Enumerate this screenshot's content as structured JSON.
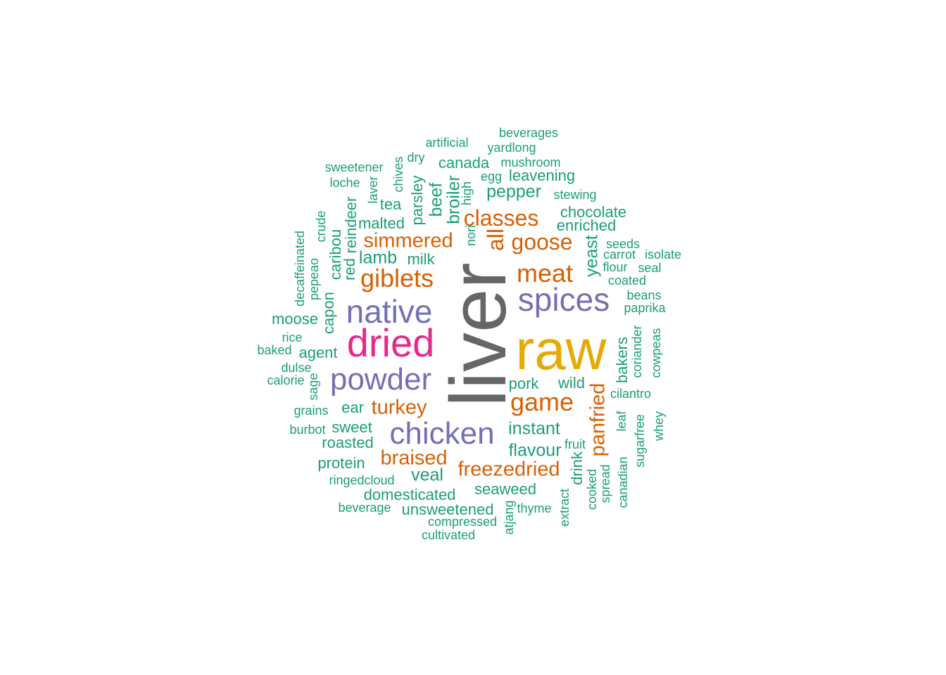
{
  "colors": {
    "gray": "#666666",
    "gold": "#E6AB02",
    "magenta": "#E7298A",
    "purple": "#7570B3",
    "orange": "#D95F02",
    "teal": "#1B9E77"
  },
  "words": [
    {
      "text": "liver",
      "color": "gray"
    },
    {
      "text": "raw",
      "color": "gold"
    },
    {
      "text": "dried",
      "color": "magenta"
    },
    {
      "text": "native",
      "color": "purple"
    },
    {
      "text": "powder",
      "color": "purple"
    },
    {
      "text": "chicken",
      "color": "purple"
    },
    {
      "text": "spices",
      "color": "purple"
    },
    {
      "text": "giblets",
      "color": "orange"
    },
    {
      "text": "meat",
      "color": "orange"
    },
    {
      "text": "game",
      "color": "orange"
    },
    {
      "text": "simmered",
      "color": "orange"
    },
    {
      "text": "goose",
      "color": "orange"
    },
    {
      "text": "classes",
      "color": "orange"
    },
    {
      "text": "all",
      "color": "orange"
    },
    {
      "text": "turkey",
      "color": "orange"
    },
    {
      "text": "braised",
      "color": "orange"
    },
    {
      "text": "freezedried",
      "color": "orange"
    },
    {
      "text": "panfried",
      "color": "orange"
    },
    {
      "text": "beverages",
      "color": "teal"
    },
    {
      "text": "artificial",
      "color": "teal"
    },
    {
      "text": "yardlong",
      "color": "teal"
    },
    {
      "text": "dry",
      "color": "teal"
    },
    {
      "text": "mushroom",
      "color": "teal"
    },
    {
      "text": "sweetener",
      "color": "teal"
    },
    {
      "text": "chives",
      "color": "teal"
    },
    {
      "text": "canada",
      "color": "teal"
    },
    {
      "text": "egg",
      "color": "teal"
    },
    {
      "text": "leavening",
      "color": "teal"
    },
    {
      "text": "loche",
      "color": "teal"
    },
    {
      "text": "laver",
      "color": "teal"
    },
    {
      "text": "parsley",
      "color": "teal"
    },
    {
      "text": "beef",
      "color": "teal"
    },
    {
      "text": "broiler",
      "color": "teal"
    },
    {
      "text": "high",
      "color": "teal"
    },
    {
      "text": "pepper",
      "color": "teal"
    },
    {
      "text": "stewing",
      "color": "teal"
    },
    {
      "text": "tea",
      "color": "teal"
    },
    {
      "text": "reindeer",
      "color": "teal"
    },
    {
      "text": "crude",
      "color": "teal"
    },
    {
      "text": "chocolate",
      "color": "teal"
    },
    {
      "text": "malted",
      "color": "teal"
    },
    {
      "text": "enriched",
      "color": "teal"
    },
    {
      "text": "nori",
      "color": "teal"
    },
    {
      "text": "decaffeinated",
      "color": "teal"
    },
    {
      "text": "caribou",
      "color": "teal"
    },
    {
      "text": "seeds",
      "color": "teal"
    },
    {
      "text": "yeast",
      "color": "teal"
    },
    {
      "text": "carrot",
      "color": "teal"
    },
    {
      "text": "isolate",
      "color": "teal"
    },
    {
      "text": "lamb",
      "color": "teal"
    },
    {
      "text": "milk",
      "color": "teal"
    },
    {
      "text": "red",
      "color": "teal"
    },
    {
      "text": "pepeao",
      "color": "teal"
    },
    {
      "text": "flour",
      "color": "teal"
    },
    {
      "text": "seal",
      "color": "teal"
    },
    {
      "text": "coated",
      "color": "teal"
    },
    {
      "text": "beans",
      "color": "teal"
    },
    {
      "text": "capon",
      "color": "teal"
    },
    {
      "text": "paprika",
      "color": "teal"
    },
    {
      "text": "moose",
      "color": "teal"
    },
    {
      "text": "rice",
      "color": "teal"
    },
    {
      "text": "coriander",
      "color": "teal"
    },
    {
      "text": "cowpeas",
      "color": "teal"
    },
    {
      "text": "bakers",
      "color": "teal"
    },
    {
      "text": "baked",
      "color": "teal"
    },
    {
      "text": "agent",
      "color": "teal"
    },
    {
      "text": "dulse",
      "color": "teal"
    },
    {
      "text": "calorie",
      "color": "teal"
    },
    {
      "text": "sage",
      "color": "teal"
    },
    {
      "text": "pork",
      "color": "teal"
    },
    {
      "text": "wild",
      "color": "teal"
    },
    {
      "text": "cilantro",
      "color": "teal"
    },
    {
      "text": "grains",
      "color": "teal"
    },
    {
      "text": "ear",
      "color": "teal"
    },
    {
      "text": "leaf",
      "color": "teal"
    },
    {
      "text": "sugarfree",
      "color": "teal"
    },
    {
      "text": "whey",
      "color": "teal"
    },
    {
      "text": "burbot",
      "color": "teal"
    },
    {
      "text": "sweet",
      "color": "teal"
    },
    {
      "text": "instant",
      "color": "teal"
    },
    {
      "text": "roasted",
      "color": "teal"
    },
    {
      "text": "fruit",
      "color": "teal"
    },
    {
      "text": "flavour",
      "color": "teal"
    },
    {
      "text": "protein",
      "color": "teal"
    },
    {
      "text": "drink",
      "color": "teal"
    },
    {
      "text": "canadian",
      "color": "teal"
    },
    {
      "text": "veal",
      "color": "teal"
    },
    {
      "text": "ringedcloud",
      "color": "teal"
    },
    {
      "text": "spread",
      "color": "teal"
    },
    {
      "text": "cooked",
      "color": "teal"
    },
    {
      "text": "seaweed",
      "color": "teal"
    },
    {
      "text": "domesticated",
      "color": "teal"
    },
    {
      "text": "extract",
      "color": "teal"
    },
    {
      "text": "beverage",
      "color": "teal"
    },
    {
      "text": "unsweetened",
      "color": "teal"
    },
    {
      "text": "thyme",
      "color": "teal"
    },
    {
      "text": "atjang",
      "color": "teal"
    },
    {
      "text": "compressed",
      "color": "teal"
    },
    {
      "text": "cultivated",
      "color": "teal"
    }
  ]
}
